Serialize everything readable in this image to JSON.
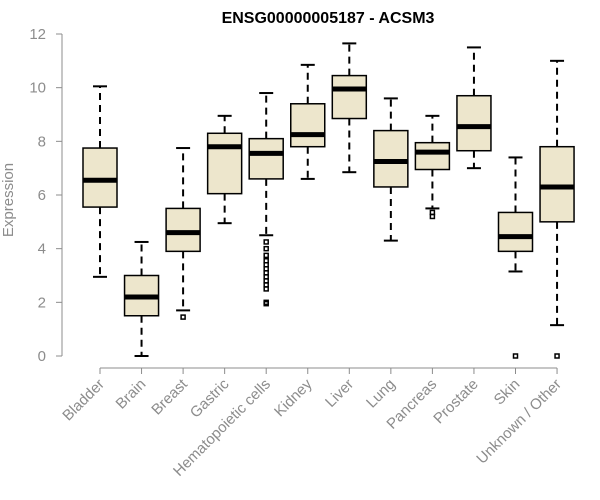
{
  "chart_data": {
    "type": "boxplot",
    "title": "ENSG00000005187 - ACSM3",
    "xlabel": "",
    "ylabel": "Expression",
    "ylim": [
      0,
      12
    ],
    "yticks": [
      0,
      2,
      4,
      6,
      8,
      10,
      12
    ],
    "box_color": "#ede6cc",
    "categories": [
      "Bladder",
      "Brain",
      "Breast",
      "Gastric",
      "Hematopoietic cells",
      "Kidney",
      "Liver",
      "Lung",
      "Pancreas",
      "Prostate",
      "Skin",
      "Unknown / Other"
    ],
    "boxes": [
      {
        "category": "Bladder",
        "min": 2.95,
        "q1": 5.55,
        "median": 6.55,
        "q3": 7.75,
        "max": 10.05,
        "outliers": []
      },
      {
        "category": "Brain",
        "min": 0.0,
        "q1": 1.5,
        "median": 2.2,
        "q3": 3.0,
        "max": 4.25,
        "outliers": []
      },
      {
        "category": "Breast",
        "min": 1.7,
        "q1": 3.9,
        "median": 4.6,
        "q3": 5.5,
        "max": 7.75,
        "outliers": [
          1.45
        ]
      },
      {
        "category": "Gastric",
        "min": 4.95,
        "q1": 6.05,
        "median": 7.8,
        "q3": 8.3,
        "max": 8.95,
        "outliers": []
      },
      {
        "category": "Hematopoietic cells",
        "min": 4.5,
        "q1": 6.6,
        "median": 7.55,
        "q3": 8.1,
        "max": 9.8,
        "outliers": [
          4.25,
          4.0,
          3.75,
          3.55,
          3.4,
          3.25,
          3.1,
          2.95,
          2.8,
          2.65,
          2.5,
          2.0,
          1.95
        ]
      },
      {
        "category": "Kidney",
        "min": 6.6,
        "q1": 7.8,
        "median": 8.25,
        "q3": 9.4,
        "max": 10.85,
        "outliers": []
      },
      {
        "category": "Liver",
        "min": 6.85,
        "q1": 8.85,
        "median": 9.95,
        "q3": 10.45,
        "max": 11.65,
        "outliers": []
      },
      {
        "category": "Lung",
        "min": 4.3,
        "q1": 6.3,
        "median": 7.25,
        "q3": 8.4,
        "max": 9.6,
        "outliers": []
      },
      {
        "category": "Pancreas",
        "min": 5.5,
        "q1": 6.95,
        "median": 7.6,
        "q3": 7.95,
        "max": 8.95,
        "outliers": [
          5.35,
          5.2
        ]
      },
      {
        "category": "Prostate",
        "min": 7.0,
        "q1": 7.65,
        "median": 8.55,
        "q3": 9.7,
        "max": 11.5,
        "outliers": []
      },
      {
        "category": "Skin",
        "min": 3.15,
        "q1": 3.9,
        "median": 4.45,
        "q3": 5.35,
        "max": 7.4,
        "outliers": [
          0.0
        ]
      },
      {
        "category": "Unknown / Other",
        "min": 1.15,
        "q1": 5.0,
        "median": 6.3,
        "q3": 7.8,
        "max": 11.0,
        "outliers": [
          0.0
        ]
      }
    ]
  }
}
